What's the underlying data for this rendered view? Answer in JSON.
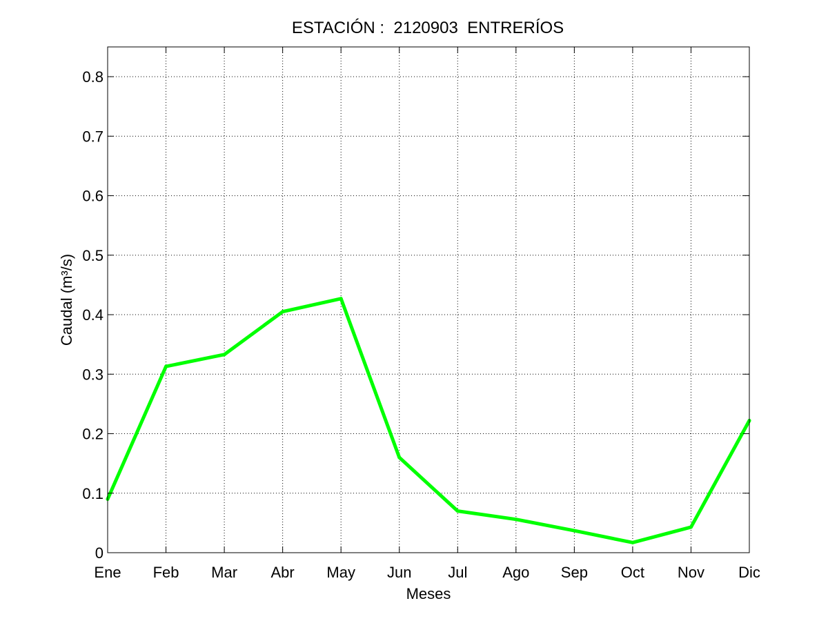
{
  "chart_data": {
    "type": "line",
    "title": "ESTACIÓN :  2120903  ENTRERÍOS",
    "xlabel": "Meses",
    "ylabel": "Caudal (m³/s)",
    "categories": [
      "Ene",
      "Feb",
      "Mar",
      "Abr",
      "May",
      "Jun",
      "Jul",
      "Ago",
      "Sep",
      "Oct",
      "Nov",
      "Dic"
    ],
    "series": [
      {
        "name": "",
        "color": "#00ff00",
        "values": [
          0.09,
          0.313,
          0.333,
          0.405,
          0.427,
          0.16,
          0.07,
          0.056,
          0.037,
          0.017,
          0.043,
          0.222
        ]
      }
    ],
    "ylim": [
      0,
      0.85
    ],
    "yticks": [
      0,
      0.1,
      0.2,
      0.3,
      0.4,
      0.5,
      0.6,
      0.7,
      0.8
    ],
    "ytick_labels": [
      "0",
      "0.1",
      "0.2",
      "0.3",
      "0.4",
      "0.5",
      "0.6",
      "0.7",
      "0.8"
    ],
    "grid": true
  }
}
